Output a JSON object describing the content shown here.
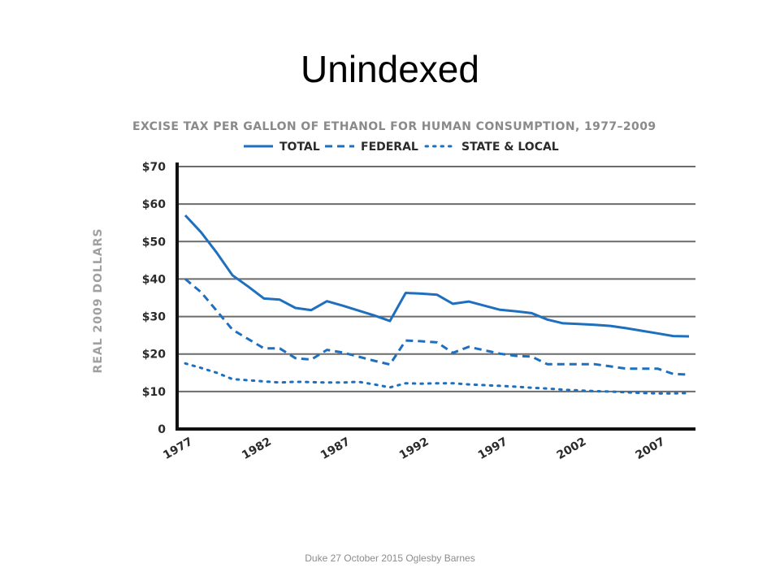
{
  "slide": {
    "title": "Unindexed",
    "footer": "Duke 27 October 2015 Oglesby Barnes"
  },
  "chart_data": {
    "type": "line",
    "title": "EXCISE TAX PER GALLON OF ETHANOL FOR HUMAN CONSUMPTION, 1977–2009",
    "xlabel": "",
    "ylabel": "REAL 2009 DOLLARS",
    "xlim": [
      1977,
      2009
    ],
    "ylim": [
      0,
      70
    ],
    "x_ticks": [
      1977,
      1982,
      1987,
      1992,
      1997,
      2002,
      2007
    ],
    "x_tick_labels": [
      "1977",
      "1982",
      "1987",
      "1992",
      "1997",
      "2002",
      "2007"
    ],
    "y_ticks": [
      0,
      10,
      20,
      30,
      40,
      50,
      60,
      70
    ],
    "y_tick_labels": [
      "0",
      "$10",
      "$20",
      "$30",
      "$40",
      "$50",
      "$60",
      "$70"
    ],
    "grid": true,
    "legend_position": "top",
    "series_color": "#1f6fbf",
    "x": [
      1977,
      1978,
      1979,
      1980,
      1981,
      1982,
      1983,
      1984,
      1985,
      1986,
      1987,
      1988,
      1989,
      1990,
      1991,
      1992,
      1993,
      1994,
      1995,
      1996,
      1997,
      1998,
      1999,
      2000,
      2001,
      2002,
      2003,
      2004,
      2005,
      2006,
      2007,
      2008,
      2009
    ],
    "series": [
      {
        "name": "TOTAL",
        "style": "solid",
        "values": [
          57,
          52.5,
          47,
          41,
          38,
          34.8,
          34.5,
          32.3,
          31.7,
          34.1,
          32.9,
          31.6,
          30.3,
          28.8,
          36.3,
          36.1,
          35.8,
          33.4,
          34,
          32.9,
          31.8,
          31.4,
          30.9,
          29.2,
          28.2,
          28,
          27.8,
          27.5,
          26.9,
          26.2,
          25.5,
          24.8,
          24.7
        ]
      },
      {
        "name": "FEDERAL",
        "style": "dashed",
        "values": [
          40,
          36.5,
          31.5,
          26.5,
          24,
          21.5,
          21.5,
          18.9,
          18.5,
          21.1,
          20.4,
          19.3,
          18.2,
          17.2,
          23.6,
          23.4,
          23.1,
          20.3,
          21.9,
          21,
          20.1,
          19.5,
          19.3,
          17.3,
          17.3,
          17.3,
          17.3,
          16.7,
          16.1,
          16.1,
          16.1,
          14.7,
          14.5
        ]
      },
      {
        "name": "STATE & LOCAL",
        "style": "dotted",
        "values": [
          17.5,
          16.3,
          15,
          13.3,
          13,
          12.7,
          12.4,
          12.6,
          12.5,
          12.4,
          12.4,
          12.6,
          11.9,
          11.1,
          12.2,
          12.1,
          12.2,
          12.2,
          11.9,
          11.7,
          11.5,
          11.3,
          11,
          10.8,
          10.5,
          10.3,
          10.1,
          10,
          9.8,
          9.6,
          9.5,
          9.5,
          9.6
        ]
      }
    ]
  }
}
